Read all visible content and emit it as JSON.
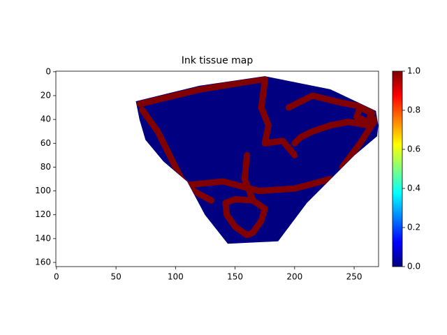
{
  "chart_data": {
    "type": "heatmap",
    "title": "Ink tissue map",
    "colormap": "jet",
    "xlim": [
      -0.5,
      270.5
    ],
    "ylim": [
      163.5,
      -0.5
    ],
    "xticks": [
      0,
      50,
      100,
      150,
      200,
      250
    ],
    "yticks": [
      0,
      20,
      40,
      60,
      80,
      100,
      120,
      140,
      160
    ],
    "clim": [
      0,
      1
    ],
    "cticks": [
      {
        "value": 0,
        "label": "0.0"
      },
      {
        "value": 0.2,
        "label": "0.2"
      },
      {
        "value": 0.4,
        "label": "0.4"
      },
      {
        "value": 0.6,
        "label": "0.6"
      },
      {
        "value": 0.8,
        "label": "0.8"
      },
      {
        "value": 1,
        "label": "1.0"
      }
    ],
    "tissue": {
      "value": 0,
      "x": [
        67,
        120,
        175,
        230,
        268,
        270,
        269,
        250,
        235,
        210,
        186,
        144,
        125,
        110,
        90,
        75,
        70
      ],
      "y": [
        25,
        12,
        4,
        15,
        33,
        45,
        54,
        70,
        85,
        110,
        142,
        144,
        120,
        92,
        75,
        57,
        40
      ]
    },
    "ink": {
      "value": 1,
      "paths": [
        {
          "x": [
            72,
            85,
            95,
            105,
            115,
            130
          ],
          "y": [
            32,
            50,
            70,
            90,
            100,
            108
          ]
        },
        {
          "x": [
            70,
            120,
            175
          ],
          "y": [
            27,
            15,
            6
          ]
        },
        {
          "x": [
            175,
            172,
            178,
            175,
            190,
            200
          ],
          "y": [
            8,
            30,
            45,
            60,
            58,
            70
          ]
        },
        {
          "x": [
            195,
            215,
            235,
            250,
            265,
            262,
            245,
            230,
            215,
            205,
            200
          ],
          "y": [
            30,
            20,
            25,
            28,
            30,
            45,
            42,
            45,
            50,
            55,
            60
          ]
        },
        {
          "x": [
            255,
            265,
            262,
            252,
            255
          ],
          "y": [
            30,
            35,
            42,
            38,
            30
          ]
        },
        {
          "x": [
            150,
            165,
            175,
            172,
            165,
            160,
            150,
            143,
            142,
            150
          ],
          "y": [
            107,
            108,
            115,
            125,
            135,
            137,
            130,
            120,
            110,
            107
          ]
        },
        {
          "x": [
            268,
            255,
            240
          ],
          "y": [
            40,
            60,
            80
          ]
        },
        {
          "x": [
            110,
            140,
            170,
            200,
            230
          ],
          "y": [
            95,
            92,
            100,
            98,
            90
          ]
        },
        {
          "x": [
            160,
            158,
            165
          ],
          "y": [
            70,
            90,
            108
          ]
        }
      ]
    }
  }
}
